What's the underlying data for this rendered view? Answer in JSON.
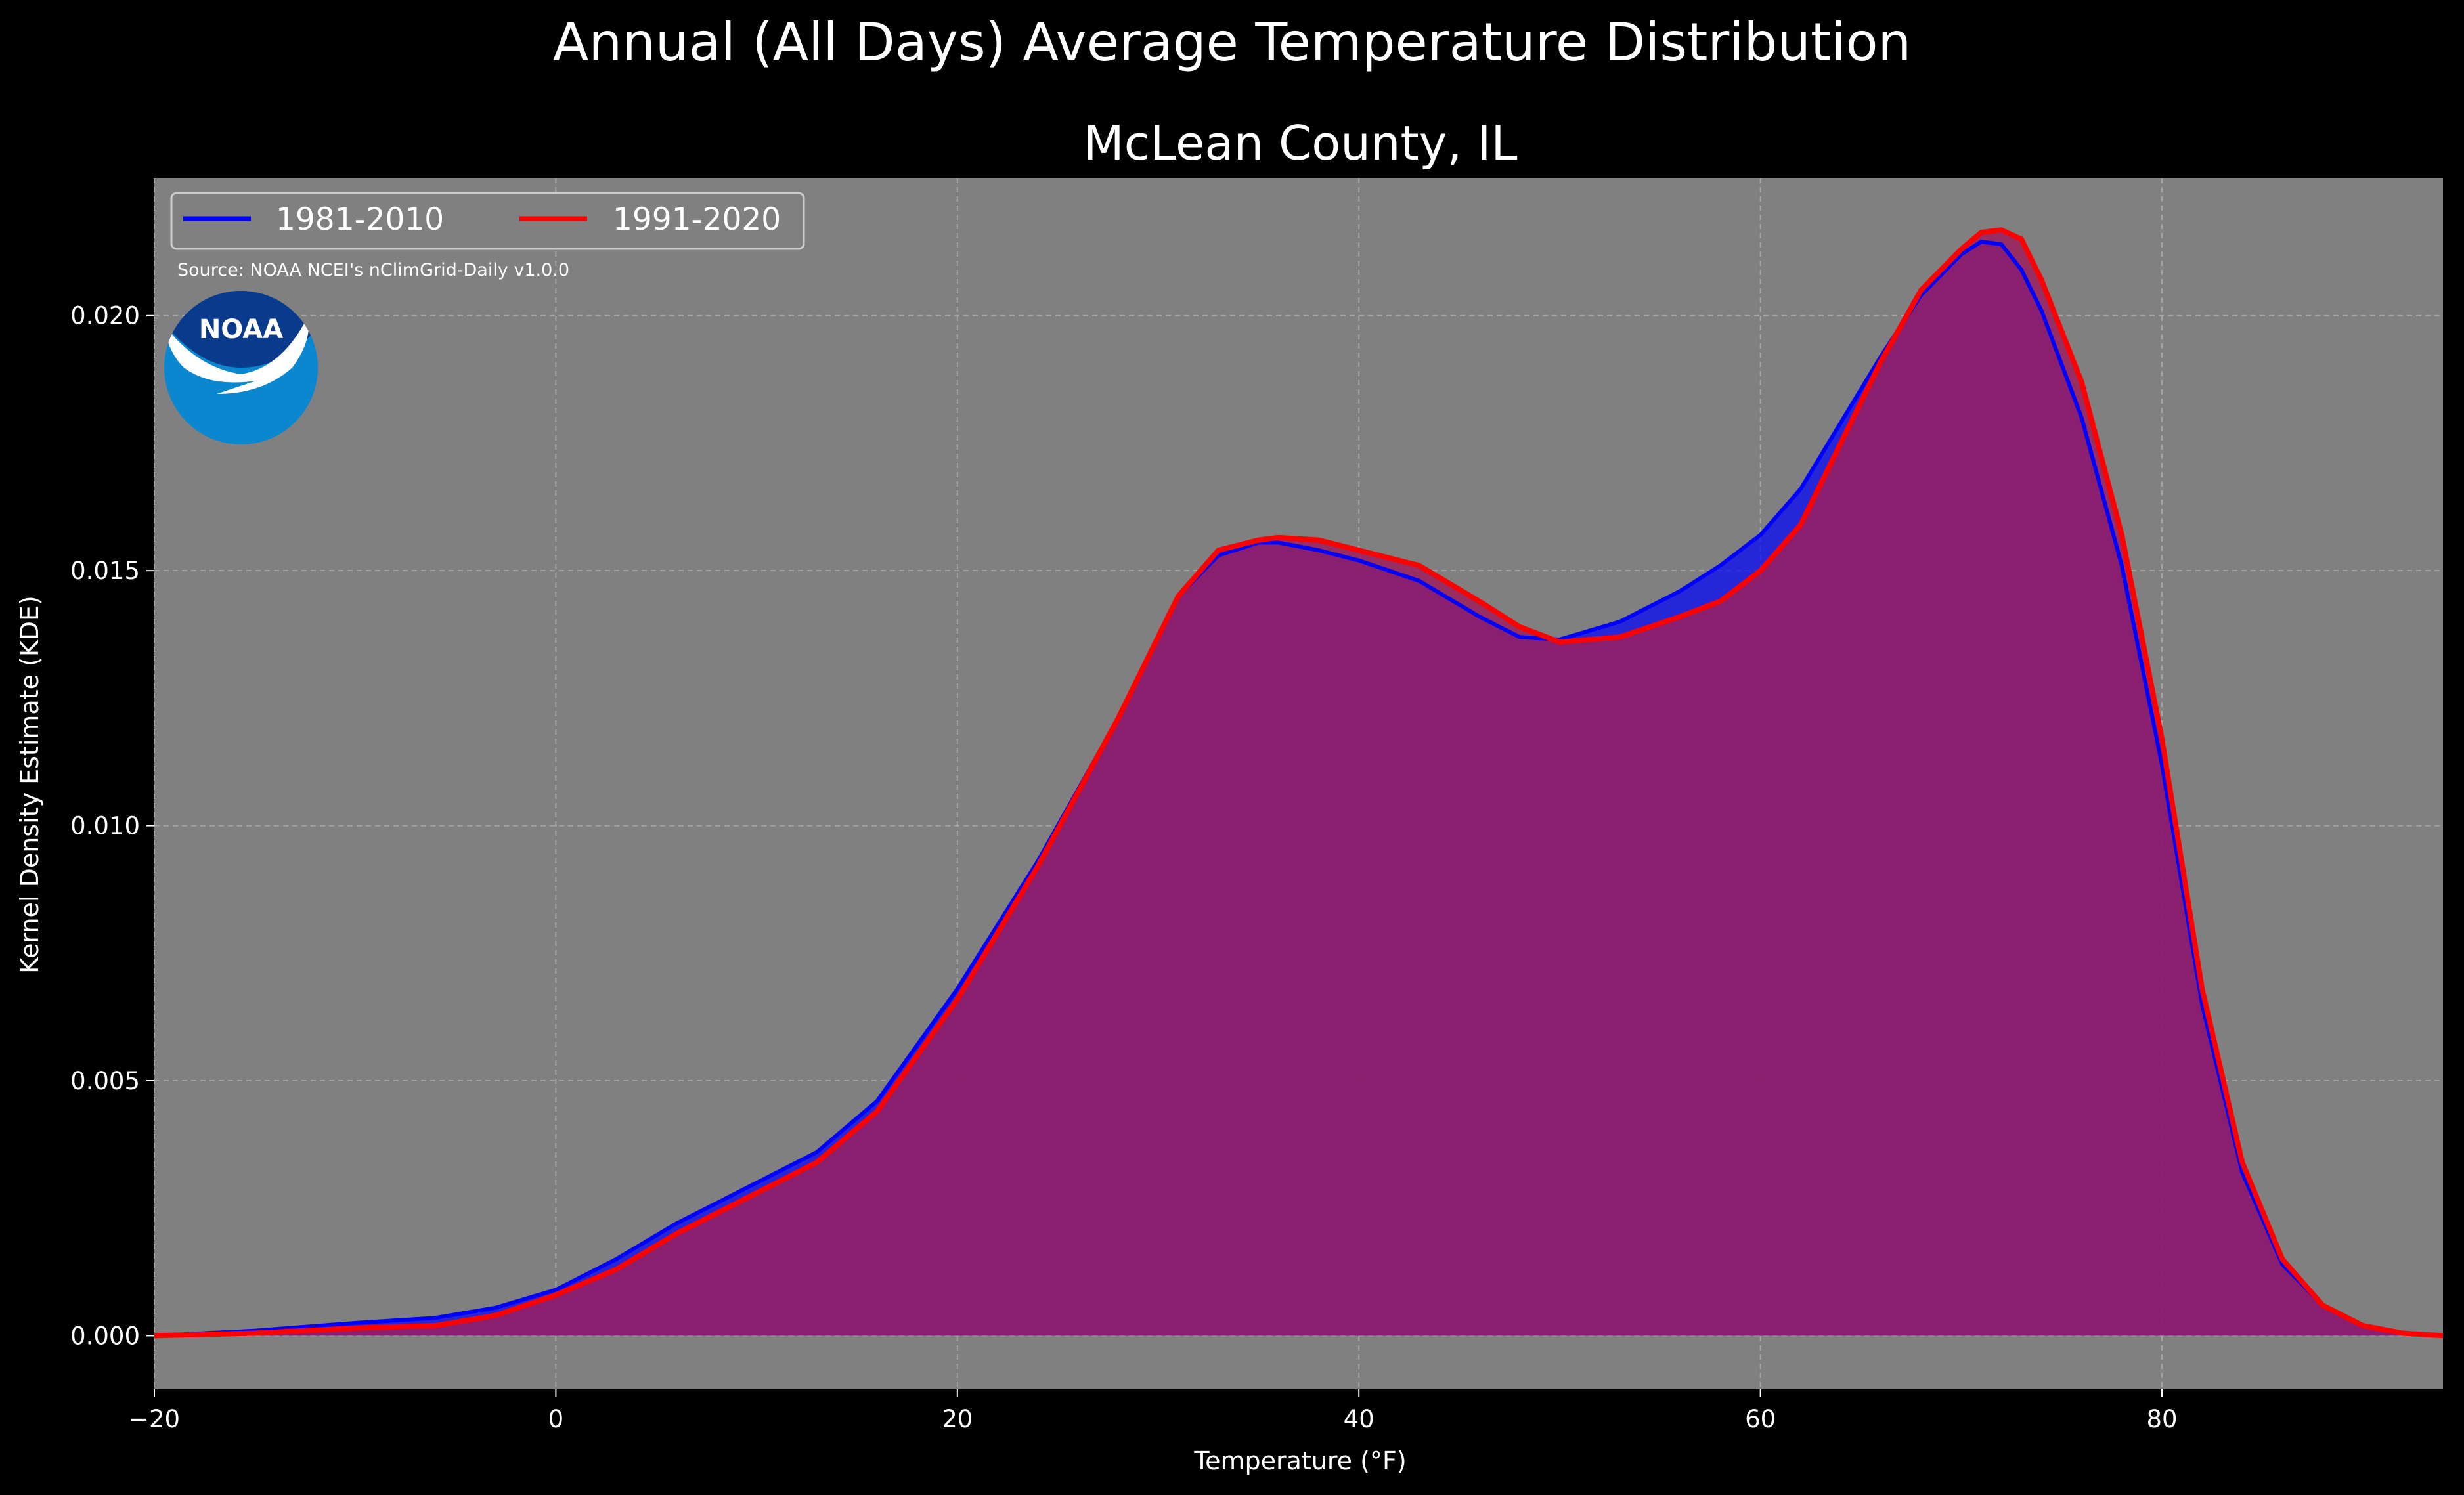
{
  "colors": {
    "background": "#000000",
    "plot_background": "#808080",
    "series_1981": "#0000ff",
    "series_1991": "#ff0000",
    "overlap_fill": "#9c1f5c",
    "grid": "#b0b0b0"
  },
  "chart_data": {
    "type": "area",
    "title": "Annual (All Days) Average Temperature Distribution",
    "subtitle": "McLean County, IL",
    "xlabel": "Temperature (°F)",
    "ylabel": "Kernel Density Estimate (KDE)",
    "xlim": [
      -20,
      94
    ],
    "ylim": [
      -0.00105,
      0.0227
    ],
    "xticks": [
      -20,
      0,
      20,
      40,
      60,
      80
    ],
    "xtick_labels": [
      "−20",
      "0",
      "20",
      "40",
      "60",
      "80"
    ],
    "yticks": [
      0.0,
      0.005,
      0.01,
      0.015,
      0.02
    ],
    "ytick_labels": [
      "0.000",
      "0.005",
      "0.010",
      "0.015",
      "0.020"
    ],
    "grid": true,
    "legend_placement": "top-left",
    "source_note": "Source: NOAA NCEI's nClimGrid-Daily v1.0.0",
    "x": [
      -20,
      -15,
      -10,
      -6,
      -3,
      0,
      3,
      6,
      8,
      10,
      13,
      16,
      20,
      24,
      28,
      31,
      33,
      35,
      36,
      38,
      40,
      43,
      46,
      48,
      50,
      53,
      56,
      58,
      60,
      62,
      64,
      66,
      68,
      70,
      71,
      72,
      73,
      74,
      76,
      78,
      80,
      82,
      84,
      86,
      88,
      90,
      92,
      94
    ],
    "series": [
      {
        "name": "1981-2010",
        "values": [
          0.0,
          0.0001,
          0.00025,
          0.00035,
          0.00055,
          0.0009,
          0.0015,
          0.0022,
          0.0026,
          0.003,
          0.0036,
          0.0046,
          0.0068,
          0.0093,
          0.0121,
          0.0145,
          0.0153,
          0.01555,
          0.01555,
          0.0154,
          0.0152,
          0.0148,
          0.0141,
          0.0137,
          0.01365,
          0.014,
          0.0146,
          0.0151,
          0.0157,
          0.0166,
          0.0179,
          0.0192,
          0.0204,
          0.0212,
          0.02145,
          0.0214,
          0.0209,
          0.0201,
          0.018,
          0.0151,
          0.0112,
          0.0065,
          0.0032,
          0.0014,
          0.0006,
          0.0002,
          5e-05,
          0.0
        ]
      },
      {
        "name": "1991-2020",
        "values": [
          0.0,
          5e-05,
          0.00015,
          0.0002,
          0.0004,
          0.0008,
          0.0013,
          0.002,
          0.0024,
          0.0028,
          0.0034,
          0.0044,
          0.0066,
          0.0092,
          0.0121,
          0.0145,
          0.0154,
          0.0156,
          0.01565,
          0.0156,
          0.0154,
          0.0151,
          0.0144,
          0.0139,
          0.0136,
          0.0137,
          0.0141,
          0.0144,
          0.015,
          0.0159,
          0.0175,
          0.0191,
          0.0205,
          0.0213,
          0.02163,
          0.02168,
          0.0215,
          0.0207,
          0.0187,
          0.0157,
          0.0117,
          0.0068,
          0.0034,
          0.0015,
          0.0006,
          0.0002,
          5e-05,
          0.0
        ]
      }
    ]
  }
}
